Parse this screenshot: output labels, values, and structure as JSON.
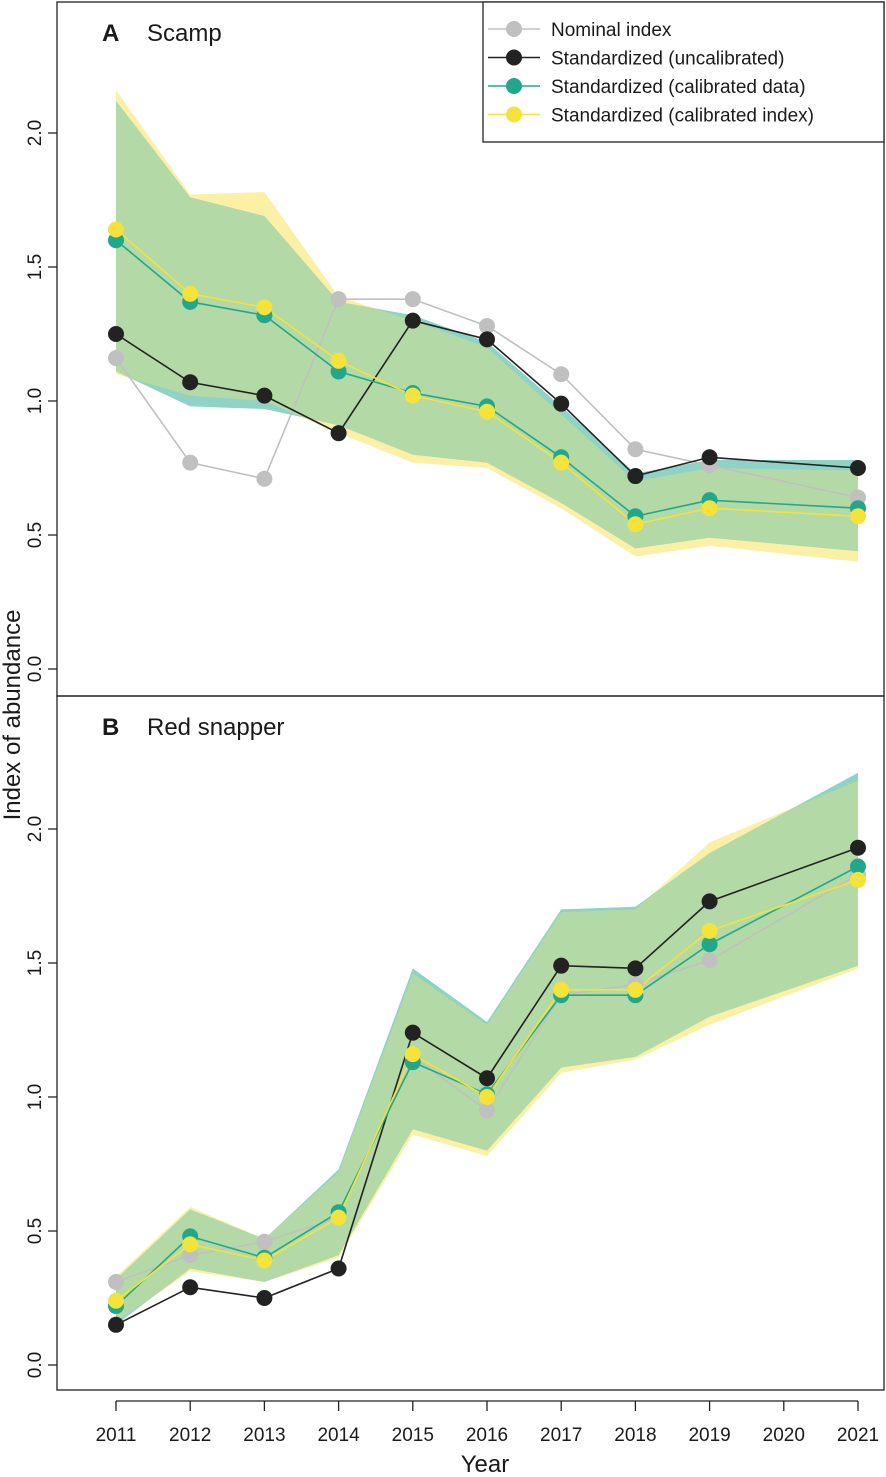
{
  "chart_data": [
    {
      "type": "line",
      "panel_letter": "A",
      "panel_title": "Scamp",
      "x": [
        2011,
        2012,
        2013,
        2014,
        2015,
        2016,
        2017,
        2018,
        2019,
        2020,
        2021
      ],
      "ylim": [
        0.0,
        2.4
      ],
      "yticks": [
        "0.0",
        "0.5",
        "1.0",
        "1.5",
        "2.0"
      ],
      "series": [
        {
          "name": "Nominal index",
          "color": "#c0c0c0",
          "values": [
            1.16,
            0.77,
            0.71,
            1.38,
            1.38,
            1.28,
            1.1,
            0.82,
            0.76,
            null,
            0.64
          ]
        },
        {
          "name": "Standardized (uncalibrated)",
          "color": "#222222",
          "values": [
            1.25,
            1.07,
            1.02,
            0.88,
            1.3,
            1.23,
            0.99,
            0.72,
            0.79,
            null,
            0.75
          ]
        },
        {
          "name": "Standardized (calibrated data)",
          "color": "#21a88c",
          "values": [
            1.6,
            1.37,
            1.32,
            1.11,
            1.03,
            0.98,
            0.79,
            0.57,
            0.63,
            null,
            0.6
          ]
        },
        {
          "name": "Standardized (calibrated index)",
          "color": "#f5e23a",
          "values": [
            1.64,
            1.4,
            1.35,
            1.15,
            1.02,
            0.96,
            0.77,
            0.54,
            0.6,
            null,
            0.57
          ]
        }
      ],
      "bands": [
        {
          "name": "calibrated data CI",
          "color": "#8fd3c6",
          "x": [
            2011,
            2012,
            2013,
            2014,
            2015,
            2016,
            2017,
            2018,
            2019,
            2021
          ],
          "lower": [
            1.11,
            0.98,
            0.97,
            0.91,
            0.8,
            0.77,
            0.62,
            0.45,
            0.49,
            0.44
          ],
          "upper": [
            2.12,
            1.76,
            1.69,
            1.37,
            1.32,
            1.22,
            0.98,
            0.73,
            0.78,
            0.78
          ]
        },
        {
          "name": "calibrated index CI",
          "color": "#fbf0a6",
          "x": [
            2011,
            2012,
            2013,
            2014,
            2015,
            2016,
            2017,
            2018,
            2019,
            2021
          ],
          "lower": [
            1.1,
            1.02,
            1.0,
            0.88,
            0.77,
            0.75,
            0.6,
            0.42,
            0.46,
            0.4
          ],
          "upper": [
            2.16,
            1.77,
            1.78,
            1.39,
            1.3,
            1.2,
            0.95,
            0.7,
            0.75,
            0.74
          ]
        }
      ]
    },
    {
      "type": "line",
      "panel_letter": "B",
      "panel_title": "Red snapper",
      "x": [
        2011,
        2012,
        2013,
        2014,
        2015,
        2016,
        2017,
        2018,
        2019,
        2020,
        2021
      ],
      "ylim": [
        -0.1,
        2.5
      ],
      "yticks": [
        "0.0",
        "0.5",
        "1.0",
        "1.5",
        "2.0"
      ],
      "xticks": [
        "2011",
        "2012",
        "2013",
        "2014",
        "2015",
        "2016",
        "2017",
        "2018",
        "2019",
        "2020",
        "2021"
      ],
      "xlabel": "Year",
      "series": [
        {
          "name": "Nominal index",
          "color": "#c0c0c0",
          "values": [
            0.31,
            0.41,
            0.46,
            0.55,
            1.15,
            0.95,
            1.38,
            1.42,
            1.51,
            null,
            1.83
          ]
        },
        {
          "name": "Standardized (uncalibrated)",
          "color": "#222222",
          "values": [
            0.15,
            0.29,
            0.25,
            0.36,
            1.24,
            1.07,
            1.49,
            1.48,
            1.73,
            null,
            1.93
          ]
        },
        {
          "name": "Standardized (calibrated data)",
          "color": "#21a88c",
          "values": [
            0.22,
            0.48,
            0.4,
            0.57,
            1.13,
            1.01,
            1.38,
            1.38,
            1.57,
            null,
            1.86
          ]
        },
        {
          "name": "Standardized (calibrated index)",
          "color": "#f5e23a",
          "values": [
            0.24,
            0.45,
            0.39,
            0.55,
            1.16,
            1.0,
            1.4,
            1.4,
            1.62,
            null,
            1.81
          ]
        }
      ],
      "bands": [
        {
          "name": "calibrated data CI",
          "color": "#8fd3c6",
          "x": [
            2011,
            2012,
            2013,
            2014,
            2015,
            2016,
            2017,
            2018,
            2019,
            2021
          ],
          "lower": [
            0.15,
            0.36,
            0.31,
            0.41,
            0.88,
            0.8,
            1.11,
            1.15,
            1.3,
            1.49
          ],
          "upper": [
            0.32,
            0.58,
            0.47,
            0.73,
            1.48,
            1.28,
            1.7,
            1.71,
            1.91,
            2.21
          ]
        },
        {
          "name": "calibrated index CI",
          "color": "#fbf0a6",
          "x": [
            2011,
            2012,
            2013,
            2014,
            2015,
            2016,
            2017,
            2018,
            2019,
            2021
          ],
          "lower": [
            0.16,
            0.35,
            0.31,
            0.4,
            0.86,
            0.78,
            1.09,
            1.14,
            1.27,
            1.48
          ],
          "upper": [
            0.33,
            0.59,
            0.47,
            0.72,
            1.46,
            1.27,
            1.69,
            1.7,
            1.95,
            2.18
          ]
        }
      ]
    }
  ],
  "ylabel": "Index of abundance",
  "legend": {
    "placement": "top-right",
    "entries": [
      {
        "label": "Nominal index",
        "color": "#c0c0c0"
      },
      {
        "label": "Standardized (uncalibrated)",
        "color": "#222222"
      },
      {
        "label": "Standardized (calibrated data)",
        "color": "#21a88c"
      },
      {
        "label": "Standardized (calibrated index)",
        "color": "#f5e23a"
      }
    ]
  }
}
